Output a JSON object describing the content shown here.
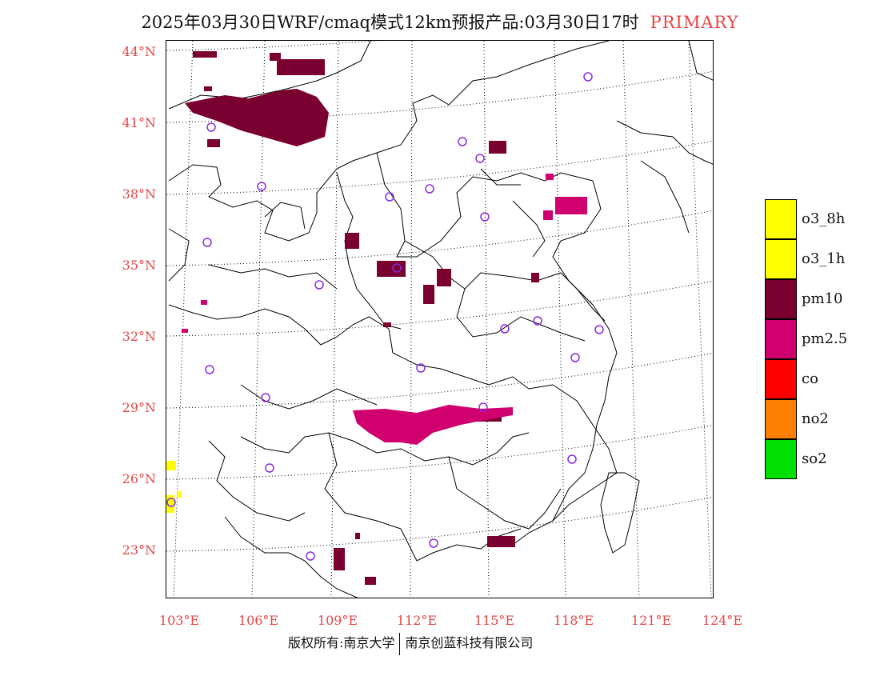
{
  "title": {
    "main": "2025年03月30日WRF/cmaq模式12km预报产品:03月30日17时",
    "pollutant_tag": "PRIMARY"
  },
  "map": {
    "lat_labels": [
      "44°N",
      "41°N",
      "38°N",
      "35°N",
      "32°N",
      "29°N",
      "26°N",
      "23°N"
    ],
    "lon_labels": [
      "103°E",
      "106°E",
      "109°E",
      "112°E",
      "115°E",
      "118°E",
      "121°E",
      "124°E"
    ],
    "marker_color": "#8a2be2",
    "boundary_color": "#000000"
  },
  "legend": {
    "items": [
      {
        "label": "o3_8h",
        "color": "#ffff00"
      },
      {
        "label": "o3_1h",
        "color": "#ffff00"
      },
      {
        "label": "pm10",
        "color": "#7a0030"
      },
      {
        "label": "pm2.5",
        "color": "#d0006e"
      },
      {
        "label": "co",
        "color": "#ff0000"
      },
      {
        "label": "no2",
        "color": "#ff7f00"
      },
      {
        "label": "so2",
        "color": "#00e000"
      }
    ]
  },
  "footer": {
    "copyright": "版权所有:南京大学",
    "company": "南京创蓝科技有限公司"
  }
}
